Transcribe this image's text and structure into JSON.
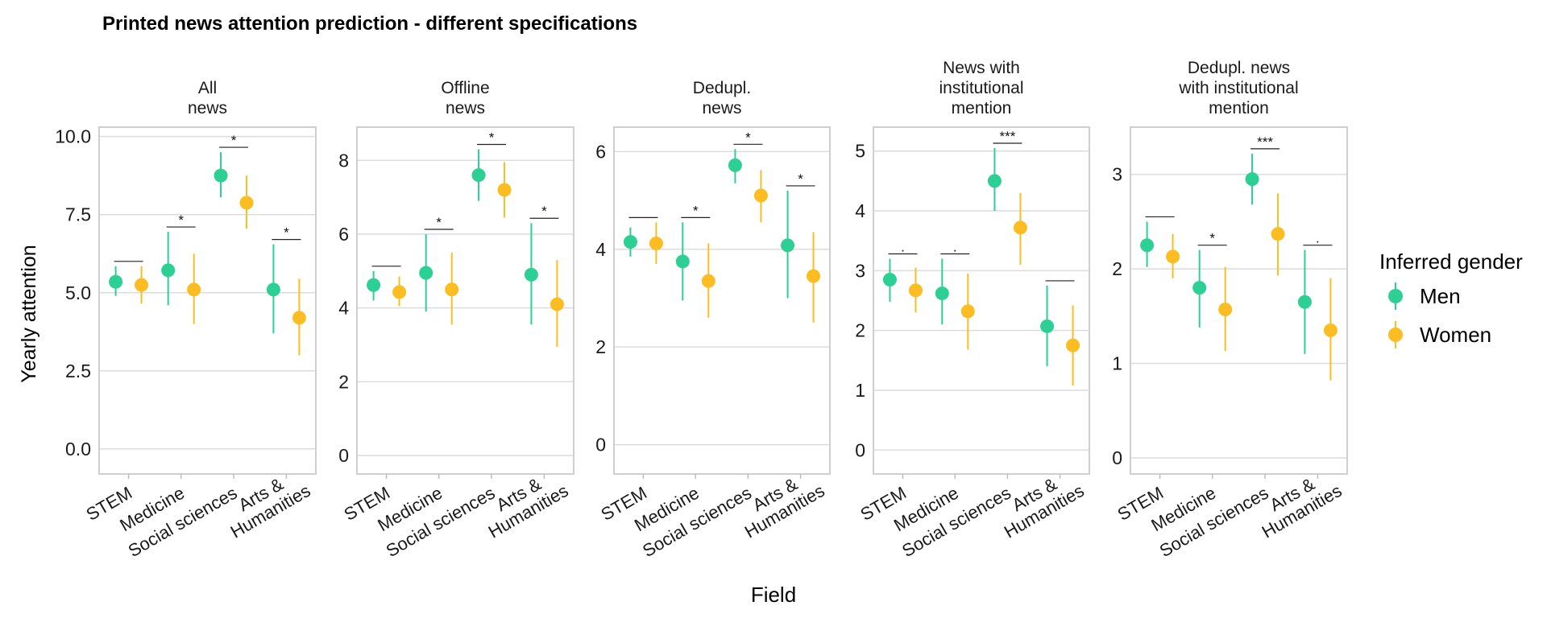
{
  "chart_data": {
    "type": "scatter",
    "title": "Printed news attention prediction - different specifications",
    "xlabel": "Field",
    "ylabel": "Yearly attention",
    "legend_title": "Inferred gender",
    "legend_position": "right",
    "grid": true,
    "categories": [
      "STEM",
      "Medicine",
      "Social sciences",
      "Arts & Humanities"
    ],
    "category_lines": [
      [
        "STEM"
      ],
      [
        "Medicine"
      ],
      [
        "Social sciences"
      ],
      [
        "Arts &",
        "Humanities"
      ]
    ],
    "series_names": [
      "Men",
      "Women"
    ],
    "colors": {
      "Men": "#2ecf94",
      "Women": "#fbbc24"
    },
    "panels": [
      {
        "title_lines": [
          "All",
          "news"
        ],
        "ylim": [
          -0.8,
          10.3
        ],
        "yticks": [
          0.0,
          2.5,
          5.0,
          7.5,
          10.0
        ],
        "ytick_labels": [
          "0.0",
          "2.5",
          "5.0",
          "7.5",
          "10.0"
        ],
        "series": [
          {
            "name": "Men",
            "values": [
              5.35,
              5.72,
              8.75,
              5.1
            ],
            "lower": [
              4.9,
              4.6,
              8.05,
              3.7
            ],
            "upper": [
              5.85,
              6.95,
              9.5,
              6.55
            ]
          },
          {
            "name": "Women",
            "values": [
              5.25,
              5.1,
              7.88,
              4.2
            ],
            "lower": [
              4.65,
              4.0,
              7.05,
              3.0
            ],
            "upper": [
              5.85,
              6.25,
              8.75,
              5.45
            ]
          }
        ],
        "significance": [
          "",
          "*",
          "*",
          "*"
        ]
      },
      {
        "title_lines": [
          "Offline",
          "news"
        ],
        "ylim": [
          -0.5,
          8.9
        ],
        "yticks": [
          0,
          2,
          4,
          6,
          8
        ],
        "ytick_labels": [
          "0",
          "2",
          "4",
          "6",
          "8"
        ],
        "series": [
          {
            "name": "Men",
            "values": [
              4.62,
              4.95,
              7.6,
              4.9
            ],
            "lower": [
              4.2,
              3.9,
              6.9,
              3.55
            ],
            "upper": [
              5.0,
              6.0,
              8.3,
              6.3
            ]
          },
          {
            "name": "Women",
            "values": [
              4.43,
              4.5,
              7.2,
              4.1
            ],
            "lower": [
              4.05,
              3.55,
              6.45,
              2.95
            ],
            "upper": [
              4.85,
              5.5,
              7.95,
              5.3
            ]
          }
        ],
        "significance": [
          "",
          "*",
          "*",
          "*"
        ]
      },
      {
        "title_lines": [
          "Dedupl.",
          "news"
        ],
        "ylim": [
          -0.6,
          6.5
        ],
        "yticks": [
          0,
          2,
          4,
          6
        ],
        "ytick_labels": [
          "0",
          "2",
          "4",
          "6"
        ],
        "series": [
          {
            "name": "Men",
            "values": [
              4.15,
              3.75,
              5.72,
              4.08
            ],
            "lower": [
              3.85,
              2.95,
              5.35,
              3.0
            ],
            "upper": [
              4.45,
              4.55,
              6.05,
              5.2
            ]
          },
          {
            "name": "Women",
            "values": [
              4.12,
              3.35,
              5.1,
              3.45
            ],
            "lower": [
              3.7,
              2.6,
              4.55,
              2.5
            ],
            "upper": [
              4.55,
              4.12,
              5.62,
              4.35
            ]
          }
        ],
        "significance": [
          "",
          "*",
          "*",
          "*"
        ]
      },
      {
        "title_lines": [
          "News with",
          "institutional",
          "mention"
        ],
        "ylim": [
          -0.4,
          5.4
        ],
        "yticks": [
          0,
          1,
          2,
          3,
          4,
          5
        ],
        "ytick_labels": [
          "0",
          "1",
          "2",
          "3",
          "4",
          "5"
        ],
        "series": [
          {
            "name": "Men",
            "values": [
              2.85,
              2.62,
              4.5,
              2.07
            ],
            "lower": [
              2.48,
              2.1,
              4.0,
              1.4
            ],
            "upper": [
              3.2,
              3.2,
              5.05,
              2.75
            ]
          },
          {
            "name": "Women",
            "values": [
              2.67,
              2.32,
              3.72,
              1.75
            ],
            "lower": [
              2.3,
              1.68,
              3.1,
              1.08
            ],
            "upper": [
              3.05,
              2.95,
              4.3,
              2.42
            ]
          }
        ],
        "significance": [
          ".",
          ".",
          "***",
          ""
        ]
      },
      {
        "title_lines": [
          "Dedupl. news",
          "with institutional",
          "mention"
        ],
        "ylim": [
          -0.17,
          3.5
        ],
        "yticks": [
          0,
          1,
          2,
          3
        ],
        "ytick_labels": [
          "0",
          "1",
          "2",
          "3"
        ],
        "series": [
          {
            "name": "Men",
            "values": [
              2.25,
              1.8,
              2.95,
              1.65
            ],
            "lower": [
              2.02,
              1.38,
              2.68,
              1.1
            ],
            "upper": [
              2.5,
              2.2,
              3.22,
              2.2
            ]
          },
          {
            "name": "Women",
            "values": [
              2.13,
              1.57,
              2.37,
              1.35
            ],
            "lower": [
              1.9,
              1.13,
              1.93,
              0.82
            ],
            "upper": [
              2.37,
              2.02,
              2.8,
              1.9
            ]
          }
        ],
        "significance": [
          "",
          "*",
          "***",
          "."
        ]
      }
    ]
  }
}
